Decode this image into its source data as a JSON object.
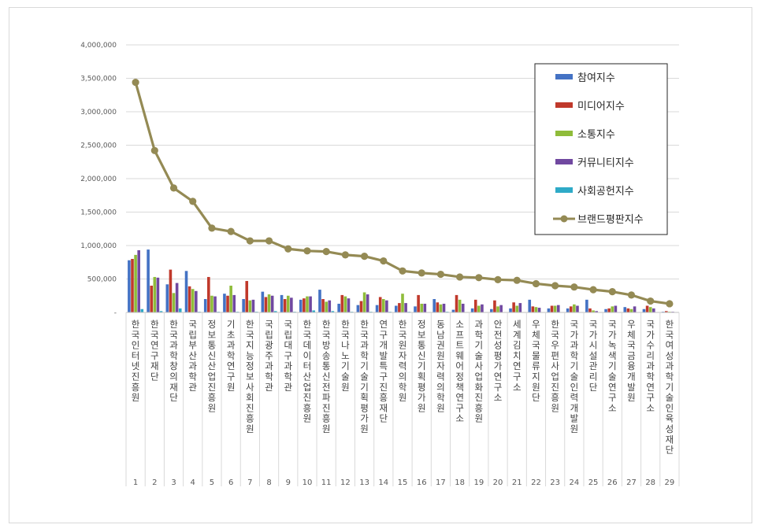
{
  "chart_data": {
    "type": "bar",
    "title": "",
    "xlabel": "",
    "ylabel": "",
    "ylim": [
      0,
      4000000
    ],
    "yticks": [
      "-",
      "500,000",
      "1,000,000",
      "1,500,000",
      "2,000,000",
      "2,500,000",
      "3,000,000",
      "3,500,000",
      "4,000,000"
    ],
    "grid": true,
    "legend_position": "top-right",
    "categories": [
      "한국인터넷진흥원",
      "한국연구재단",
      "한국과학창의재단",
      "국립부산과학관",
      "정보통신산업진흥원",
      "기초과학연구원",
      "한국지능정보사회진흥원",
      "국립광주과학관",
      "국립대구과학관",
      "한국데이터산업진흥원",
      "한국방송통신전파진흥원",
      "한국나노기술원",
      "한국과학기술기획평가원",
      "연구개발특구진흥재단",
      "한국원자력의학원",
      "정보통신기획평가원",
      "동남권원자력의학원",
      "소프트웨어정책연구소",
      "과학기술사업화진흥원",
      "안전성평가연구소",
      "세계김치연구소",
      "우체국물류지원단",
      "한국우편사업진흥원",
      "국가과학기술인력개발원",
      "국가시설관리단",
      "국가녹색기술연구소",
      "우체국금융개발원",
      "국가수리과학연구소",
      "한국여성과학기술인육성재단"
    ],
    "ranks": [
      "1",
      "2",
      "3",
      "4",
      "5",
      "6",
      "7",
      "8",
      "9",
      "10",
      "11",
      "12",
      "13",
      "14",
      "15",
      "16",
      "17",
      "18",
      "19",
      "20",
      "21",
      "22",
      "23",
      "24",
      "25",
      "26",
      "27",
      "28",
      "29"
    ],
    "series": [
      {
        "name": "참여지수",
        "type": "bar",
        "color": "#4472c4",
        "values": [
          780000,
          940000,
          420000,
          620000,
          200000,
          280000,
          200000,
          310000,
          260000,
          190000,
          340000,
          130000,
          110000,
          110000,
          100000,
          90000,
          200000,
          40000,
          60000,
          50000,
          60000,
          190000,
          60000,
          60000,
          190000,
          50000,
          80000,
          50000,
          10000
        ]
      },
      {
        "name": "미디어지수",
        "type": "bar",
        "color": "#c0392b",
        "values": [
          800000,
          400000,
          640000,
          390000,
          530000,
          250000,
          470000,
          230000,
          200000,
          210000,
          200000,
          260000,
          170000,
          230000,
          140000,
          260000,
          150000,
          260000,
          190000,
          180000,
          150000,
          90000,
          100000,
          90000,
          60000,
          60000,
          60000,
          100000,
          20000
        ]
      },
      {
        "name": "소통지수",
        "type": "bar",
        "color": "#8fbc3a",
        "values": [
          860000,
          530000,
          290000,
          350000,
          250000,
          400000,
          180000,
          270000,
          250000,
          240000,
          160000,
          240000,
          300000,
          200000,
          280000,
          130000,
          120000,
          190000,
          100000,
          90000,
          100000,
          80000,
          100000,
          120000,
          30000,
          90000,
          50000,
          80000,
          10000
        ]
      },
      {
        "name": "커뮤니티지수",
        "type": "bar",
        "color": "#7048a0",
        "values": [
          930000,
          520000,
          440000,
          320000,
          240000,
          260000,
          190000,
          250000,
          220000,
          240000,
          180000,
          210000,
          270000,
          180000,
          140000,
          130000,
          130000,
          130000,
          120000,
          110000,
          140000,
          70000,
          110000,
          100000,
          20000,
          100000,
          90000,
          60000,
          10000
        ]
      },
      {
        "name": "사회공헌지수",
        "type": "bar",
        "color": "#2eaac7",
        "values": [
          50000,
          20000,
          60000,
          10000,
          10000,
          10000,
          10000,
          20000,
          10000,
          30000,
          20000,
          10000,
          10000,
          10000,
          10000,
          5000,
          10000,
          5000,
          5000,
          5000,
          5000,
          5000,
          5000,
          5000,
          5000,
          5000,
          5000,
          5000,
          5000
        ]
      },
      {
        "name": "브랜드평판지수",
        "type": "line",
        "color": "#948a54",
        "values": [
          3440000,
          2420000,
          1860000,
          1660000,
          1260000,
          1210000,
          1070000,
          1070000,
          950000,
          920000,
          910000,
          860000,
          840000,
          770000,
          620000,
          590000,
          570000,
          530000,
          520000,
          490000,
          480000,
          430000,
          400000,
          380000,
          340000,
          310000,
          260000,
          170000,
          130000
        ]
      }
    ]
  }
}
